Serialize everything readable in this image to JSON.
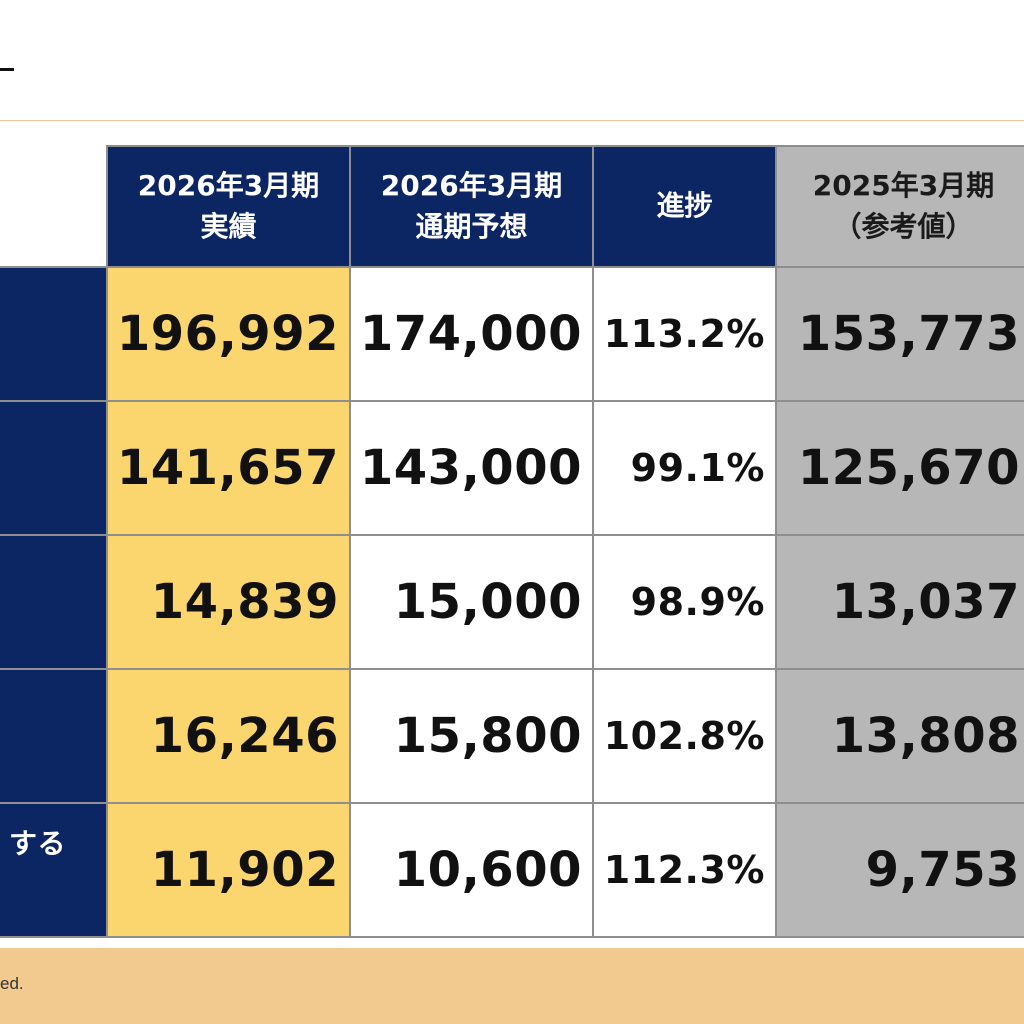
{
  "columns": [
    {
      "line1": "2026年3月期",
      "line2": "実績"
    },
    {
      "line1": "2026年3月期",
      "line2": "通期予想"
    },
    {
      "line1": "進捗",
      "line2": ""
    },
    {
      "line1": "2025年3月期",
      "line2": "（参考値）"
    }
  ],
  "rows": [
    {
      "label": "",
      "actual": "196,992",
      "forecast": "174,000",
      "progress": "113.2%",
      "prior": "153,773"
    },
    {
      "label": "",
      "actual": "141,657",
      "forecast": "143,000",
      "progress": "99.1%",
      "prior": "125,670"
    },
    {
      "label": "",
      "actual": "14,839",
      "forecast": "15,000",
      "progress": "98.9%",
      "prior": "13,037"
    },
    {
      "label": "",
      "actual": "16,246",
      "forecast": "15,800",
      "progress": "102.8%",
      "prior": "13,808"
    },
    {
      "label": "する",
      "actual": "11,902",
      "forecast": "10,600",
      "progress": "112.3%",
      "prior": "9,753"
    }
  ],
  "footer": {
    "text": "ed."
  },
  "colors": {
    "navy": "#0c2563",
    "actual_highlight": "#fbd56e",
    "prior_grey": "#b7b7b7",
    "footer_band": "#f2c98e"
  }
}
